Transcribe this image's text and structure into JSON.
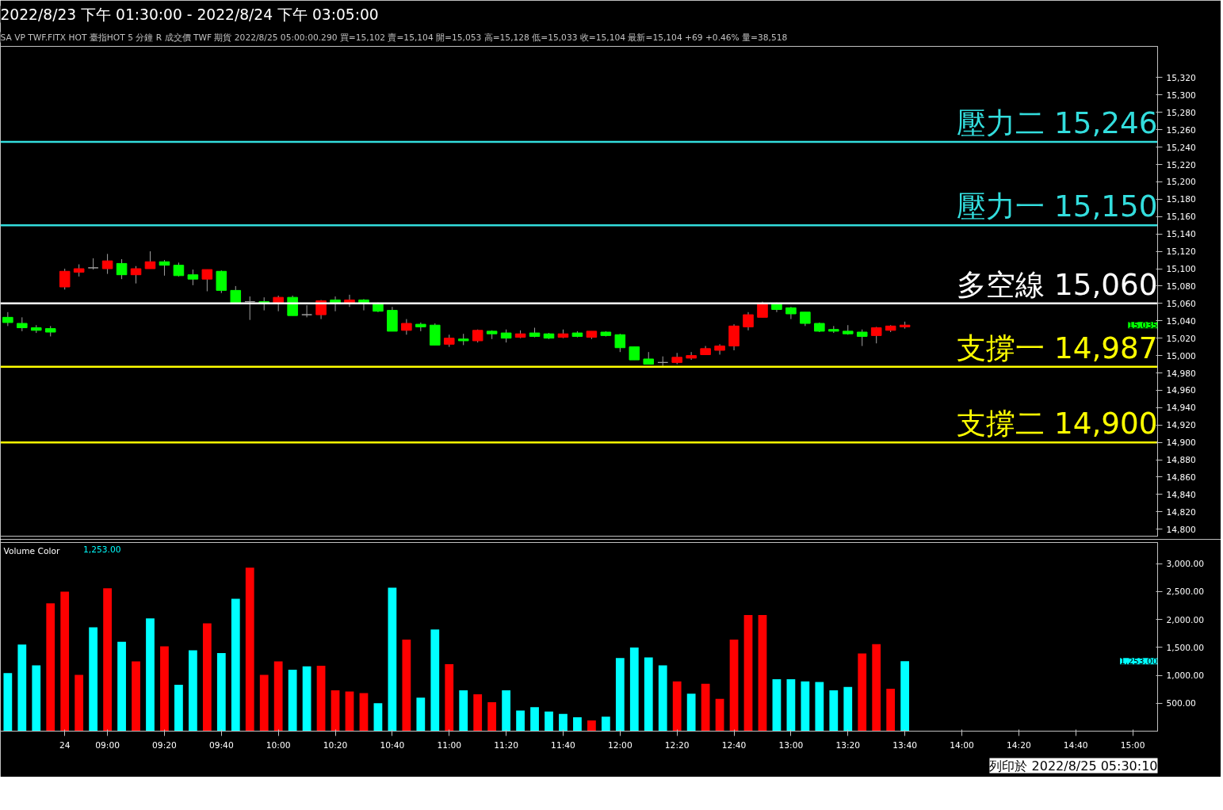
{
  "chart_data": [
    {
      "type": "candlestick",
      "title": "2022/8/23 下午 01:30:00 - 2022/8/24 下午 03:05:00",
      "subtitle": "SA  VP  TWF.FITX HOT  臺指HOT 5 分鐘  R  成交價 TWF 期貨 2022/8/25 05:00:00.290 買=15,102 賣=15,104 開=15,053 高=15,128 低=15,033 收=15,104 最新=15,104 +69 +0.46% 量=38,518",
      "ohlc": [
        [
          15044,
          15050,
          15034,
          15038
        ],
        [
          15037,
          15044,
          15028,
          15032
        ],
        [
          15032,
          15035,
          15026,
          15029
        ],
        [
          15031,
          15034,
          15022,
          15027
        ],
        [
          15079,
          15100,
          15076,
          15097
        ],
        [
          15096,
          15105,
          15091,
          15100
        ],
        [
          15101,
          15112,
          15099,
          15101
        ],
        [
          15100,
          15117,
          15094,
          15109
        ],
        [
          15106,
          15111,
          15088,
          15093
        ],
        [
          15093,
          15103,
          15083,
          15100
        ],
        [
          15100,
          15120,
          15100,
          15108
        ],
        [
          15108,
          15110,
          15092,
          15104
        ],
        [
          15104,
          15107,
          15091,
          15092
        ],
        [
          15093,
          15099,
          15081,
          15088
        ],
        [
          15088,
          15099,
          15074,
          15099
        ],
        [
          15097,
          15098,
          15072,
          15075
        ],
        [
          15075,
          15080,
          15061,
          15061
        ],
        [
          15062,
          15068,
          15041,
          15062
        ],
        [
          15062,
          15067,
          15052,
          15060
        ],
        [
          15060,
          15069,
          15051,
          15067
        ],
        [
          15067,
          15069,
          15046,
          15046
        ],
        [
          15047,
          15058,
          15044,
          15047
        ],
        [
          15047,
          15064,
          15042,
          15063
        ],
        [
          15064,
          15068,
          15051,
          15060
        ],
        [
          15060,
          15070,
          15056,
          15064
        ],
        [
          15064,
          15065,
          15052,
          15060
        ],
        [
          15060,
          15061,
          15050,
          15051
        ],
        [
          15052,
          15056,
          15028,
          15028
        ],
        [
          15029,
          15042,
          15024,
          15037
        ],
        [
          15036,
          15038,
          15028,
          15033
        ],
        [
          15035,
          15037,
          15012,
          15012
        ],
        [
          15013,
          15024,
          15010,
          15020
        ],
        [
          15019,
          15025,
          15012,
          15017
        ],
        [
          15017,
          15030,
          15015,
          15029
        ],
        [
          15028,
          15029,
          15019,
          15025
        ],
        [
          15026,
          15030,
          15015,
          15020
        ],
        [
          15021,
          15029,
          15020,
          15025
        ],
        [
          15026,
          15032,
          15021,
          15022
        ],
        [
          15025,
          15026,
          15019,
          15020
        ],
        [
          15021,
          15030,
          15020,
          15025
        ],
        [
          15026,
          15028,
          15021,
          15022
        ],
        [
          15021,
          15028,
          15019,
          15028
        ],
        [
          15027,
          15028,
          15022,
          15023
        ],
        [
          15024,
          15025,
          15004,
          15009
        ],
        [
          15010,
          15010,
          14995,
          14995
        ],
        [
          14996,
          15004,
          14990,
          14990
        ],
        [
          14992,
          14999,
          14988,
          14992
        ],
        [
          14992,
          15003,
          14990,
          14998
        ],
        [
          14997,
          15004,
          14995,
          15000
        ],
        [
          15001,
          15011,
          15001,
          15008
        ],
        [
          15006,
          15013,
          15001,
          15011
        ],
        [
          15011,
          15036,
          15006,
          15034
        ],
        [
          15033,
          15050,
          15029,
          15047
        ],
        [
          15044,
          15062,
          15044,
          15060
        ],
        [
          15060,
          15061,
          15050,
          15053
        ],
        [
          15055,
          15056,
          15042,
          15048
        ],
        [
          15050,
          15050,
          15034,
          15037
        ],
        [
          15037,
          15038,
          15027,
          15028
        ],
        [
          15030,
          15034,
          15026,
          15028
        ],
        [
          15028,
          15035,
          15024,
          15025
        ],
        [
          15027,
          15030,
          15011,
          15022
        ],
        [
          15023,
          15033,
          15014,
          15032
        ],
        [
          15029,
          15035,
          15027,
          15034
        ],
        [
          15033,
          15039,
          15031,
          15035
        ],
        null,
        null,
        null,
        null,
        null,
        null,
        null,
        null,
        null,
        null,
        null,
        null,
        null,
        null,
        null,
        null
      ],
      "ylim": [
        14792,
        15356
      ],
      "yticks": [
        {
          "value": 14800,
          "label": "14,800"
        },
        {
          "value": 14820,
          "label": "14,820"
        },
        {
          "value": 14840,
          "label": "14,840"
        },
        {
          "value": 14860,
          "label": "14,860"
        },
        {
          "value": 14880,
          "label": "14,880"
        },
        {
          "value": 14900,
          "label": "14,900"
        },
        {
          "value": 14920,
          "label": "14,920"
        },
        {
          "value": 14940,
          "label": "14,940"
        },
        {
          "value": 14960,
          "label": "14,960"
        },
        {
          "value": 14980,
          "label": "14,980"
        },
        {
          "value": 15000,
          "label": "15,000"
        },
        {
          "value": 15020,
          "label": "15,020"
        },
        {
          "value": 15040,
          "label": "15,040"
        },
        {
          "value": 15060,
          "label": "15,060"
        },
        {
          "value": 15080,
          "label": "15,080"
        },
        {
          "value": 15100,
          "label": "15,100"
        },
        {
          "value": 15120,
          "label": "15,120"
        },
        {
          "value": 15140,
          "label": "15,140"
        },
        {
          "value": 15160,
          "label": "15,160"
        },
        {
          "value": 15180,
          "label": "15,180"
        },
        {
          "value": 15200,
          "label": "15,200"
        },
        {
          "value": 15220,
          "label": "15,220"
        },
        {
          "value": 15240,
          "label": "15,240"
        },
        {
          "value": 15260,
          "label": "15,260"
        },
        {
          "value": 15280,
          "label": "15,280"
        },
        {
          "value": 15300,
          "label": "15,300"
        },
        {
          "value": 15320,
          "label": "15,320"
        }
      ],
      "ref_lines": [
        {
          "axis": "y",
          "value": 15246,
          "label": "壓力二 15,246",
          "color": "#33dddd"
        },
        {
          "axis": "y",
          "value": 15150,
          "label": "壓力一 15,150",
          "color": "#33dddd"
        },
        {
          "axis": "y",
          "value": 15060,
          "label": "多空線 15,060",
          "color": "#ffffff"
        },
        {
          "axis": "y",
          "value": 14987,
          "label": "支撐一 14,987",
          "color": "#ffff00"
        },
        {
          "axis": "y",
          "value": 14900,
          "label": "支撐二 14,900",
          "color": "#ffff00"
        }
      ],
      "annotations": [
        "15,035"
      ],
      "tick_labels": "y"
    },
    {
      "type": "bar",
      "title": "Volume Color",
      "categories": [
        null,
        null,
        null,
        null,
        "24",
        null,
        null,
        "09:00",
        null,
        null,
        null,
        "09:20",
        null,
        null,
        null,
        "09:40",
        null,
        null,
        null,
        "10:00",
        null,
        null,
        null,
        "10:20",
        null,
        null,
        null,
        "10:40",
        null,
        null,
        null,
        "11:00",
        null,
        null,
        null,
        "11:20",
        null,
        null,
        null,
        "11:40",
        null,
        null,
        null,
        "12:00",
        null,
        null,
        null,
        "12:20",
        null,
        null,
        null,
        "12:40",
        null,
        null,
        null,
        "13:00",
        null,
        null,
        null,
        "13:20",
        null,
        null,
        null,
        "13:40",
        null,
        null,
        null,
        "14:00",
        null,
        null,
        null,
        "14:20",
        null,
        null,
        null,
        "14:40",
        null,
        null,
        null,
        "15:00"
      ],
      "values": [
        1040,
        1550,
        1180,
        2290,
        2500,
        1010,
        1860,
        2560,
        1600,
        1250,
        2020,
        1520,
        830,
        1450,
        1930,
        1400,
        2370,
        2930,
        1010,
        1250,
        1100,
        1160,
        1170,
        730,
        710,
        680,
        500,
        2570,
        1640,
        600,
        1820,
        1200,
        730,
        660,
        520,
        730,
        370,
        430,
        350,
        310,
        250,
        190,
        260,
        1310,
        1500,
        1320,
        1180,
        890,
        670,
        850,
        580,
        1640,
        2080,
        2080,
        930,
        930,
        890,
        880,
        730,
        790,
        1390,
        1560,
        760,
        1253,
        null,
        null,
        null,
        null,
        null,
        null,
        null,
        null,
        null,
        null,
        null,
        null,
        null,
        null,
        null,
        null
      ],
      "colors": [
        "#00ffff",
        "#00ffff",
        "#00ffff",
        "#ff0000",
        "#ff0000",
        "#ff0000",
        "#00ffff",
        "#ff0000",
        "#00ffff",
        "#ff0000",
        "#00ffff",
        "#ff0000",
        "#00ffff",
        "#00ffff",
        "#ff0000",
        "#00ffff",
        "#00ffff",
        "#ff0000",
        "#ff0000",
        "#ff0000",
        "#00ffff",
        "#00ffff",
        "#ff0000",
        "#ff0000",
        "#ff0000",
        "#ff0000",
        "#00ffff",
        "#00ffff",
        "#ff0000",
        "#00ffff",
        "#00ffff",
        "#ff0000",
        "#00ffff",
        "#ff0000",
        "#ff0000",
        "#00ffff",
        "#00ffff",
        "#00ffff",
        "#00ffff",
        "#00ffff",
        "#00ffff",
        "#ff0000",
        "#00ffff",
        "#00ffff",
        "#00ffff",
        "#00ffff",
        "#00ffff",
        "#ff0000",
        "#00ffff",
        "#ff0000",
        "#ff0000",
        "#ff0000",
        "#ff0000",
        "#ff0000",
        "#00ffff",
        "#00ffff",
        "#00ffff",
        "#00ffff",
        "#00ffff",
        "#00ffff",
        "#ff0000",
        "#ff0000",
        "#ff0000",
        "#00ffff",
        "#00ffff",
        "#00ffff",
        "#00ffff",
        "#00ffff",
        "#00ffff",
        "#00ffff",
        "#00ffff",
        "#00ffff",
        "#00ffff",
        "#00ffff",
        "#00ffff",
        "#00ffff",
        "#00ffff",
        "#00ffff",
        "#00ffff",
        "#00ffff"
      ],
      "ylim": [
        0,
        3380
      ],
      "yticks": [
        {
          "value": 500,
          "label": "500.00"
        },
        {
          "value": 1000,
          "label": "1,000.00"
        },
        {
          "value": 1500,
          "label": "1,500.00"
        },
        {
          "value": 2000,
          "label": "2,000.00"
        },
        {
          "value": 2500,
          "label": "2,500.00"
        },
        {
          "value": 3000,
          "label": "3,000.00"
        }
      ],
      "annotations": [
        "1,253.00",
        "1,253.00",
        "列印於 2022/8/25 05:30:10"
      ]
    }
  ]
}
